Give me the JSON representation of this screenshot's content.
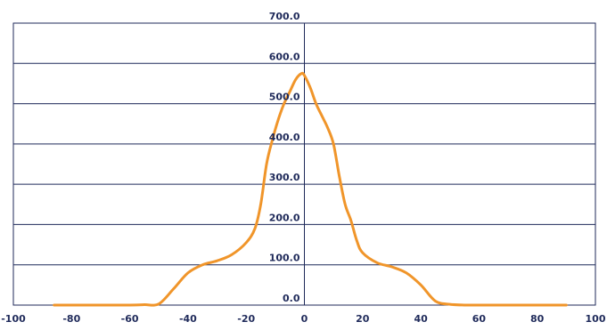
{
  "chart_data": {
    "type": "line",
    "title": "",
    "xlabel": "",
    "ylabel": "",
    "xlim": [
      -100,
      100
    ],
    "ylim": [
      0,
      700
    ],
    "x_ticks": [
      -100,
      -80,
      -60,
      -40,
      -20,
      0,
      20,
      40,
      60,
      80,
      100
    ],
    "x_tick_labels": [
      "-100",
      "-80",
      "-60",
      "-40",
      "-20",
      "0",
      "20",
      "40",
      "60",
      "80",
      "100"
    ],
    "y_ticks": [
      0,
      100,
      200,
      300,
      400,
      500,
      600,
      700
    ],
    "y_tick_labels": [
      "0.0",
      "100.0",
      "200.0",
      "300.0",
      "400.0",
      "500.0",
      "600.0",
      "700.0"
    ],
    "grid": true,
    "legend": "none",
    "colors": {
      "series": "#f0952a",
      "axis": "#1f2a5a"
    },
    "series": [
      {
        "x": [
          -86,
          -70,
          -60,
          -55,
          -50,
          -45,
          -40,
          -35,
          -30,
          -25,
          -20,
          -17,
          -15,
          -13,
          -11,
          -9,
          -7,
          -5,
          -3,
          -1,
          0,
          2,
          4,
          6,
          8,
          10,
          12,
          14,
          16,
          18,
          20,
          25,
          30,
          35,
          40,
          45,
          50,
          55,
          60,
          70,
          80,
          90
        ],
        "y": [
          0,
          0,
          0,
          1,
          3,
          40,
          80,
          100,
          110,
          125,
          155,
          190,
          250,
          350,
          410,
          460,
          500,
          530,
          560,
          575,
          570,
          540,
          500,
          470,
          440,
          400,
          320,
          250,
          210,
          160,
          130,
          105,
          95,
          80,
          50,
          10,
          2,
          0,
          0,
          0,
          0,
          0
        ]
      }
    ]
  }
}
